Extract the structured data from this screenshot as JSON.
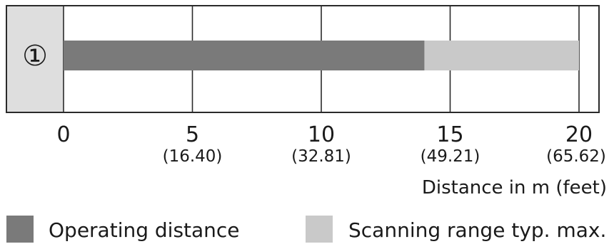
{
  "chart_data": {
    "type": "bar",
    "orientation": "horizontal",
    "categories": [
      "①"
    ],
    "series": [
      {
        "name": "Operating distance",
        "values": [
          14
        ],
        "color": "#7a7a7a"
      },
      {
        "name": "Scanning range typ. max.",
        "values": [
          20
        ],
        "color": "#c9c9c9"
      }
    ],
    "xlim": [
      0,
      20
    ],
    "xticks": [
      {
        "value": 0,
        "label": "0",
        "sub": ""
      },
      {
        "value": 5,
        "label": "5",
        "sub": "(16.40)"
      },
      {
        "value": 10,
        "label": "10",
        "sub": "(32.81)"
      },
      {
        "value": 15,
        "label": "15",
        "sub": "(49.21)"
      },
      {
        "value": 20,
        "label": "20",
        "sub": "(65.62)"
      }
    ],
    "xlabel": "Distance in m (feet)",
    "grid": true,
    "legend_position": "bottom"
  }
}
